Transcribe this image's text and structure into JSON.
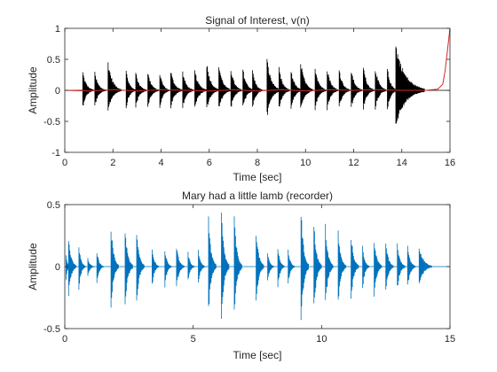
{
  "chart_data": [
    {
      "type": "line",
      "title": "Signal of Interest, v(n)",
      "xlabel": "Time [sec]",
      "ylabel": "Amplitude",
      "xlim": [
        0,
        16
      ],
      "ylim": [
        -1,
        1
      ],
      "xticks": [
        0,
        2,
        4,
        6,
        8,
        10,
        12,
        14,
        16
      ],
      "yticks": [
        -1,
        -0.5,
        0,
        0.5,
        1
      ],
      "xtick_labels": [
        "0",
        "2",
        "4",
        "6",
        "8",
        "10",
        "12",
        "14",
        "16"
      ],
      "ytick_labels": [
        "-1",
        "-0.5",
        "0",
        "0.5",
        "1"
      ],
      "grid": false,
      "series": [
        {
          "color": "#000000",
          "kind": "burst-envelope",
          "bursts": [
            {
              "t": 0.75,
              "peak": 0.32,
              "neg": -0.29,
              "dur": 0.45
            },
            {
              "t": 1.25,
              "peak": 0.3,
              "neg": -0.28,
              "dur": 0.45
            },
            {
              "t": 1.8,
              "peak": 0.5,
              "neg": -0.35,
              "dur": 0.55
            },
            {
              "t": 2.55,
              "peak": 0.34,
              "neg": -0.3,
              "dur": 0.4
            },
            {
              "t": 2.95,
              "peak": 0.32,
              "neg": -0.29,
              "dur": 0.45
            },
            {
              "t": 3.45,
              "peak": 0.32,
              "neg": -0.3,
              "dur": 0.45
            },
            {
              "t": 3.95,
              "peak": 0.31,
              "neg": -0.29,
              "dur": 0.4
            },
            {
              "t": 4.4,
              "peak": 0.34,
              "neg": -0.3,
              "dur": 0.5
            },
            {
              "t": 4.9,
              "peak": 0.32,
              "neg": -0.3,
              "dur": 0.45
            },
            {
              "t": 5.4,
              "peak": 0.34,
              "neg": -0.31,
              "dur": 0.5
            },
            {
              "t": 5.9,
              "peak": 0.48,
              "neg": -0.33,
              "dur": 0.5
            },
            {
              "t": 6.4,
              "peak": 0.45,
              "neg": -0.33,
              "dur": 0.5
            },
            {
              "t": 6.9,
              "peak": 0.38,
              "neg": -0.33,
              "dur": 0.45
            },
            {
              "t": 7.4,
              "peak": 0.37,
              "neg": -0.32,
              "dur": 0.45
            },
            {
              "t": 7.8,
              "peak": 0.36,
              "neg": -0.33,
              "dur": 0.4
            },
            {
              "t": 8.4,
              "peak": 0.54,
              "neg": -0.46,
              "dur": 0.55
            },
            {
              "t": 8.9,
              "peak": 0.38,
              "neg": -0.33,
              "dur": 0.45
            },
            {
              "t": 9.4,
              "peak": 0.36,
              "neg": -0.33,
              "dur": 0.45
            },
            {
              "t": 9.8,
              "peak": 0.52,
              "neg": -0.36,
              "dur": 0.5
            },
            {
              "t": 10.4,
              "peak": 0.42,
              "neg": -0.33,
              "dur": 0.45
            },
            {
              "t": 10.9,
              "peak": 0.4,
              "neg": -0.33,
              "dur": 0.45
            },
            {
              "t": 11.4,
              "peak": 0.37,
              "neg": -0.32,
              "dur": 0.45
            },
            {
              "t": 11.9,
              "peak": 0.36,
              "neg": -0.31,
              "dur": 0.45
            },
            {
              "t": 12.4,
              "peak": 0.42,
              "neg": -0.33,
              "dur": 0.45
            },
            {
              "t": 12.9,
              "peak": 0.4,
              "neg": -0.32,
              "dur": 0.45
            },
            {
              "t": 13.4,
              "peak": 0.38,
              "neg": -0.34,
              "dur": 0.4
            },
            {
              "t": 13.75,
              "peak": 0.78,
              "neg": -0.62,
              "dur": 1.2
            }
          ]
        },
        {
          "color": "#d62728",
          "kind": "line",
          "x": [
            0,
            1,
            2,
            3,
            4,
            5,
            6,
            7,
            8,
            9,
            10,
            11,
            12,
            13,
            14,
            15,
            15.5,
            15.7,
            15.8,
            15.9,
            16
          ],
          "y": [
            0,
            -0.01,
            0.01,
            -0.01,
            0.01,
            0,
            -0.01,
            0.01,
            -0.01,
            0.01,
            -0.01,
            0.01,
            0,
            0.01,
            0,
            0,
            0.02,
            0.1,
            0.32,
            0.66,
            1.0
          ]
        }
      ]
    },
    {
      "type": "line",
      "title": "Mary had a little lamb (recorder)",
      "xlabel": "Time [sec]",
      "ylabel": "Amplitude",
      "xlim": [
        0,
        15
      ],
      "ylim": [
        -0.5,
        0.5
      ],
      "xticks": [
        0,
        5,
        10,
        15
      ],
      "yticks": [
        -0.5,
        0,
        0.5
      ],
      "xtick_labels": [
        "0",
        "5",
        "10",
        "15"
      ],
      "ytick_labels": [
        "-0.5",
        "0",
        "0.5"
      ],
      "grid": false,
      "series": [
        {
          "color": "#0072bd",
          "kind": "burst-envelope",
          "bursts": [
            {
              "t": 0.05,
              "peak": 0.12,
              "neg": -0.12,
              "dur": 0.15
            },
            {
              "t": 0.15,
              "peak": 0.25,
              "neg": -0.25,
              "dur": 0.3
            },
            {
              "t": 0.55,
              "peak": 0.18,
              "neg": -0.2,
              "dur": 0.25
            },
            {
              "t": 0.9,
              "peak": 0.07,
              "neg": -0.08,
              "dur": 0.25
            },
            {
              "t": 1.25,
              "peak": 0.14,
              "neg": -0.15,
              "dur": 0.25
            },
            {
              "t": 1.8,
              "peak": 0.36,
              "neg": -0.36,
              "dur": 0.3
            },
            {
              "t": 2.35,
              "peak": 0.34,
              "neg": -0.34,
              "dur": 0.3
            },
            {
              "t": 2.8,
              "peak": 0.32,
              "neg": -0.32,
              "dur": 0.3
            },
            {
              "t": 3.4,
              "peak": 0.18,
              "neg": -0.18,
              "dur": 0.25
            },
            {
              "t": 3.9,
              "peak": 0.16,
              "neg": -0.17,
              "dur": 0.25
            },
            {
              "t": 4.35,
              "peak": 0.18,
              "neg": -0.18,
              "dur": 0.3
            },
            {
              "t": 4.8,
              "peak": 0.12,
              "neg": -0.12,
              "dur": 0.25
            },
            {
              "t": 5.2,
              "peak": 0.15,
              "neg": -0.15,
              "dur": 0.25
            },
            {
              "t": 5.6,
              "peak": 0.41,
              "neg": -0.4,
              "dur": 0.3
            },
            {
              "t": 6.1,
              "peak": 0.47,
              "neg": -0.46,
              "dur": 0.3
            },
            {
              "t": 6.6,
              "peak": 0.43,
              "neg": -0.42,
              "dur": 0.3
            },
            {
              "t": 7.45,
              "peak": 0.33,
              "neg": -0.33,
              "dur": 0.3
            },
            {
              "t": 7.9,
              "peak": 0.12,
              "neg": -0.13,
              "dur": 0.25
            },
            {
              "t": 8.3,
              "peak": 0.17,
              "neg": -0.18,
              "dur": 0.25
            },
            {
              "t": 8.7,
              "peak": 0.15,
              "neg": -0.16,
              "dur": 0.25
            },
            {
              "t": 9.2,
              "peak": 0.5,
              "neg": -0.5,
              "dur": 0.3
            },
            {
              "t": 9.7,
              "peak": 0.38,
              "neg": -0.38,
              "dur": 0.3
            },
            {
              "t": 10.15,
              "peak": 0.35,
              "neg": -0.35,
              "dur": 0.3
            },
            {
              "t": 10.65,
              "peak": 0.3,
              "neg": -0.31,
              "dur": 0.3
            },
            {
              "t": 11.15,
              "peak": 0.28,
              "neg": -0.28,
              "dur": 0.3
            },
            {
              "t": 11.6,
              "peak": 0.18,
              "neg": -0.2,
              "dur": 0.25
            },
            {
              "t": 12.05,
              "peak": 0.25,
              "neg": -0.25,
              "dur": 0.3
            },
            {
              "t": 12.5,
              "peak": 0.22,
              "neg": -0.22,
              "dur": 0.3
            },
            {
              "t": 12.95,
              "peak": 0.2,
              "neg": -0.2,
              "dur": 0.3
            },
            {
              "t": 13.35,
              "peak": 0.18,
              "neg": -0.19,
              "dur": 0.3
            },
            {
              "t": 13.8,
              "peak": 0.18,
              "neg": -0.16,
              "dur": 0.5
            }
          ]
        }
      ]
    }
  ]
}
